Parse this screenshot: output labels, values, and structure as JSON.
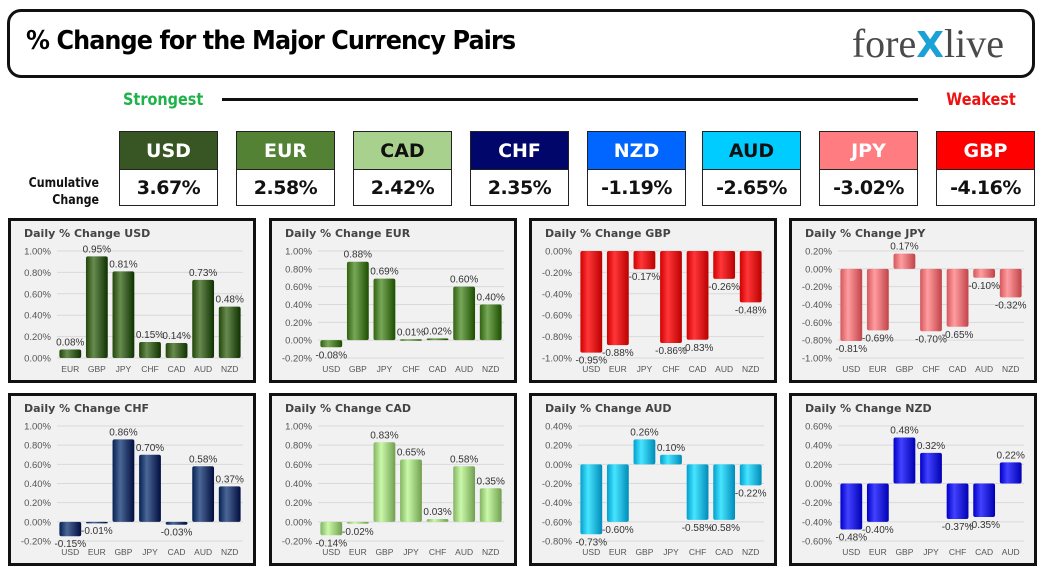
{
  "header": {
    "title": "% Change for the Major Currency Pairs",
    "logo_left": "fore",
    "logo_x": "X",
    "logo_right": "live"
  },
  "ranking": {
    "strongest_label": "Strongest",
    "weakest_label": "Weakest",
    "cumulative_label_line1": "Cumulative",
    "cumulative_label_line2": "Change",
    "currencies": [
      {
        "code": "USD",
        "value": "3.67%",
        "bg": "#375623",
        "fg": "#ffffff"
      },
      {
        "code": "EUR",
        "value": "2.58%",
        "bg": "#548235",
        "fg": "#ffffff"
      },
      {
        "code": "CAD",
        "value": "2.42%",
        "bg": "#a9d18e",
        "fg": "#111111"
      },
      {
        "code": "CHF",
        "value": "2.35%",
        "bg": "#00066a",
        "fg": "#ffffff"
      },
      {
        "code": "NZD",
        "value": "-1.19%",
        "bg": "#0066ff",
        "fg": "#ffffff"
      },
      {
        "code": "AUD",
        "value": "-2.65%",
        "bg": "#00ccff",
        "fg": "#111111"
      },
      {
        "code": "JPY",
        "value": "-3.02%",
        "bg": "#ff7c80",
        "fg": "#ffffff"
      },
      {
        "code": "GBP",
        "value": "-4.16%",
        "bg": "#ff0000",
        "fg": "#ffffff"
      }
    ]
  },
  "chart_data": [
    {
      "type": "bar",
      "title": "Daily % Change USD",
      "categories": [
        "EUR",
        "GBP",
        "JPY",
        "CHF",
        "CAD",
        "AUD",
        "NZD"
      ],
      "values": [
        0.08,
        0.95,
        0.81,
        0.15,
        0.14,
        0.73,
        0.48
      ],
      "labels": [
        "0.08%",
        "0.95%",
        "0.81%",
        "0.15%",
        "0.14%",
        "0.73%",
        "0.48%"
      ],
      "ylim": [
        0,
        1.0
      ],
      "yticks": [
        "1.00%",
        "0.80%",
        "0.60%",
        "0.40%",
        "0.20%",
        "0.00%"
      ],
      "color": "#3b5e23",
      "grid": true,
      "xlabel": "",
      "ylabel": ""
    },
    {
      "type": "bar",
      "title": "Daily % Change EUR",
      "categories": [
        "USD",
        "GBP",
        "JPY",
        "CHF",
        "CAD",
        "AUD",
        "NZD"
      ],
      "values": [
        -0.08,
        0.88,
        0.69,
        0.01,
        0.02,
        0.6,
        0.4
      ],
      "labels": [
        "-0.08%",
        "0.88%",
        "0.69%",
        "0.01%",
        "0.02%",
        "0.60%",
        "0.40%"
      ],
      "ylim": [
        -0.2,
        1.0
      ],
      "yticks": [
        "1.00%",
        "0.80%",
        "0.60%",
        "0.40%",
        "0.20%",
        "0.00%",
        "-0.20%"
      ],
      "color": "#4a7b2b",
      "grid": true,
      "xlabel": "",
      "ylabel": ""
    },
    {
      "type": "bar",
      "title": "Daily % Change GBP",
      "categories": [
        "USD",
        "EUR",
        "JPY",
        "CHF",
        "CAD",
        "AUD",
        "NZD"
      ],
      "values": [
        -0.95,
        -0.88,
        -0.17,
        -0.86,
        -0.83,
        -0.26,
        -0.48
      ],
      "labels": [
        "-0.95%",
        "-0.88%",
        "-0.17%",
        "-0.86%",
        "-0.83%",
        "-0.26%",
        "-0.48%"
      ],
      "ylim": [
        -1.0,
        0
      ],
      "yticks": [
        "0.00%",
        "-0.20%",
        "-0.40%",
        "-0.60%",
        "-0.80%",
        "-1.00%"
      ],
      "color": "#e8090b",
      "grid": true,
      "xlabel": "",
      "ylabel": ""
    },
    {
      "type": "bar",
      "title": "Daily % Change JPY",
      "categories": [
        "USD",
        "EUR",
        "GBP",
        "CHF",
        "CAD",
        "AUD",
        "NZD"
      ],
      "values": [
        -0.81,
        -0.69,
        0.17,
        -0.7,
        -0.65,
        -0.1,
        -0.32
      ],
      "labels": [
        "-0.81%",
        "-0.69%",
        "0.17%",
        "-0.70%",
        "-0.65%",
        "-0.10%",
        "-0.32%"
      ],
      "ylim": [
        -1.0,
        0.2
      ],
      "yticks": [
        "0.20%",
        "0.00%",
        "-0.20%",
        "-0.40%",
        "-0.60%",
        "-0.80%",
        "-1.00%"
      ],
      "color": "#ee7074",
      "grid": true,
      "xlabel": "",
      "ylabel": ""
    },
    {
      "type": "bar",
      "title": "Daily % Change CHF",
      "categories": [
        "USD",
        "EUR",
        "GBP",
        "JPY",
        "CAD",
        "AUD",
        "NZD"
      ],
      "values": [
        -0.15,
        -0.01,
        0.86,
        0.7,
        -0.03,
        0.58,
        0.37
      ],
      "labels": [
        "-0.15%",
        "-0.01%",
        "0.86%",
        "0.70%",
        "-0.03%",
        "0.58%",
        "0.37%"
      ],
      "ylim": [
        -0.2,
        1.0
      ],
      "yticks": [
        "1.00%",
        "0.80%",
        "0.60%",
        "0.40%",
        "0.20%",
        "0.00%",
        "-0.20%"
      ],
      "color": "#1e3a6a",
      "grid": true,
      "xlabel": "",
      "ylabel": ""
    },
    {
      "type": "bar",
      "title": "Daily % Change CAD",
      "categories": [
        "USD",
        "EUR",
        "GBP",
        "JPY",
        "CHF",
        "AUD",
        "NZD"
      ],
      "values": [
        -0.14,
        -0.02,
        0.83,
        0.65,
        0.03,
        0.58,
        0.35
      ],
      "labels": [
        "-0.14%",
        "-0.02%",
        "0.83%",
        "0.65%",
        "0.03%",
        "0.58%",
        "0.35%"
      ],
      "ylim": [
        -0.2,
        1.0
      ],
      "yticks": [
        "1.00%",
        "0.80%",
        "0.60%",
        "0.40%",
        "0.20%",
        "0.00%",
        "-0.20%"
      ],
      "color": "#9ccc7c",
      "grid": true,
      "xlabel": "",
      "ylabel": ""
    },
    {
      "type": "bar",
      "title": "Daily % Change AUD",
      "categories": [
        "USD",
        "EUR",
        "GBP",
        "JPY",
        "CHF",
        "CAD",
        "NZD"
      ],
      "values": [
        -0.73,
        -0.6,
        0.26,
        0.1,
        -0.58,
        -0.58,
        -0.22
      ],
      "labels": [
        "-0.73%",
        "-0.60%",
        "0.26%",
        "0.10%",
        "-0.58%",
        "-0.58%",
        "-0.22%"
      ],
      "ylim": [
        -0.8,
        0.4
      ],
      "yticks": [
        "0.40%",
        "0.20%",
        "0.00%",
        "-0.20%",
        "-0.40%",
        "-0.60%",
        "-0.80%"
      ],
      "color": "#1ab8e6",
      "grid": true,
      "xlabel": "",
      "ylabel": ""
    },
    {
      "type": "bar",
      "title": "Daily % Change NZD",
      "categories": [
        "USD",
        "EUR",
        "GBP",
        "JPY",
        "CHF",
        "CAD",
        "AUD"
      ],
      "values": [
        -0.48,
        -0.4,
        0.48,
        0.32,
        -0.37,
        -0.35,
        0.22
      ],
      "labels": [
        "-0.48%",
        "-0.40%",
        "0.48%",
        "0.32%",
        "-0.37%",
        "-0.35%",
        "0.22%"
      ],
      "ylim": [
        -0.6,
        0.6
      ],
      "yticks": [
        "0.60%",
        "0.40%",
        "0.20%",
        "0.00%",
        "-0.20%",
        "-0.40%",
        "-0.60%"
      ],
      "color": "#1515e0",
      "grid": true,
      "xlabel": "",
      "ylabel": ""
    }
  ]
}
